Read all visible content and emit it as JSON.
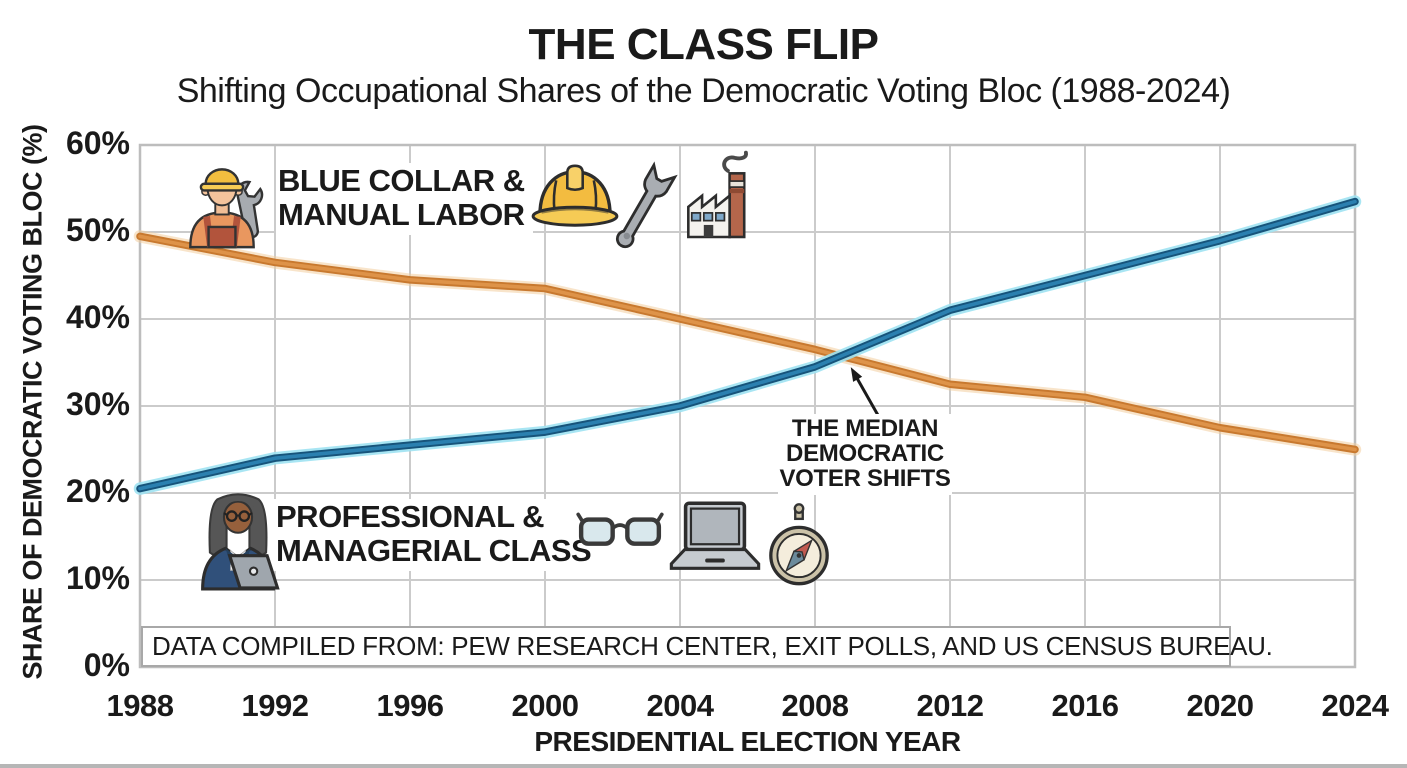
{
  "header": {
    "title": "THE CLASS FLIP",
    "subtitle": "Shifting Occupational Shares of the Democratic Voting Bloc (1988-2024)"
  },
  "axes": {
    "y_title": "SHARE OF DEMOCRATIC VOTING BLOC (%)",
    "x_title": "PRESIDENTIAL ELECTION YEAR"
  },
  "legends": {
    "blue_collar": {
      "line1": "BLUE COLLAR &",
      "line2": "MANUAL LABOR",
      "icons": [
        "worker-icon",
        "hard-hat-icon",
        "wrench-icon",
        "factory-icon"
      ]
    },
    "professional": {
      "line1": "PROFESSIONAL &",
      "line2": "MANAGERIAL CLASS",
      "icons": [
        "professional-woman-icon",
        "glasses-icon",
        "laptop-icon",
        "compass-icon"
      ]
    }
  },
  "annotation": {
    "lines": [
      "THE MEDIAN",
      "DEMOCRATIC",
      "VOTER SHIFTS"
    ]
  },
  "source": {
    "text": "DATA COMPILED FROM: PEW RESEARCH CENTER, EXIT POLLS, AND US CENSUS BUREAU."
  },
  "colors": {
    "text": "#1A1A1A",
    "grid": "#CBCBCB",
    "plot_border": "#BDBDBD",
    "blue_collar_line": "#C8792F",
    "professional_line": "#17547B"
  },
  "chart_data": {
    "type": "line",
    "title": "THE CLASS FLIP",
    "subtitle": "Shifting Occupational Shares of the Democratic Voting Bloc (1988-2024)",
    "xlabel": "PRESIDENTIAL ELECTION YEAR",
    "ylabel": "SHARE OF DEMOCRATIC VOTING BLOC (%)",
    "x": [
      1988,
      1992,
      1996,
      2000,
      2004,
      2008,
      2012,
      2016,
      2020,
      2024
    ],
    "series": [
      {
        "name": "Blue Collar & Manual Labor",
        "color": "#C8792F",
        "core": "#DE9349",
        "halo": "#F2CD9E",
        "halo_opacity": 0.55,
        "values": [
          49.5,
          46.5,
          44.5,
          43.5,
          40,
          36.5,
          32.5,
          31,
          27.5,
          25
        ]
      },
      {
        "name": "Professional & Managerial Class",
        "color": "#17547B",
        "core": "#2B80B0",
        "halo": "#9FE2F2",
        "halo_opacity": 0.9,
        "values": [
          20.5,
          24,
          25.5,
          27,
          30,
          34.5,
          41,
          45,
          49,
          53.5
        ]
      }
    ],
    "ylim": [
      0,
      60
    ],
    "y_ticks": [
      0,
      10,
      20,
      30,
      40,
      50,
      60
    ],
    "y_tick_suffix": "%",
    "grid": true,
    "legend_position": "inside-plot",
    "annotation": {
      "text": "THE MEDIAN DEMOCRATIC VOTER SHIFTS",
      "crossover_year": 2009,
      "crossover_value": 35.5
    }
  }
}
